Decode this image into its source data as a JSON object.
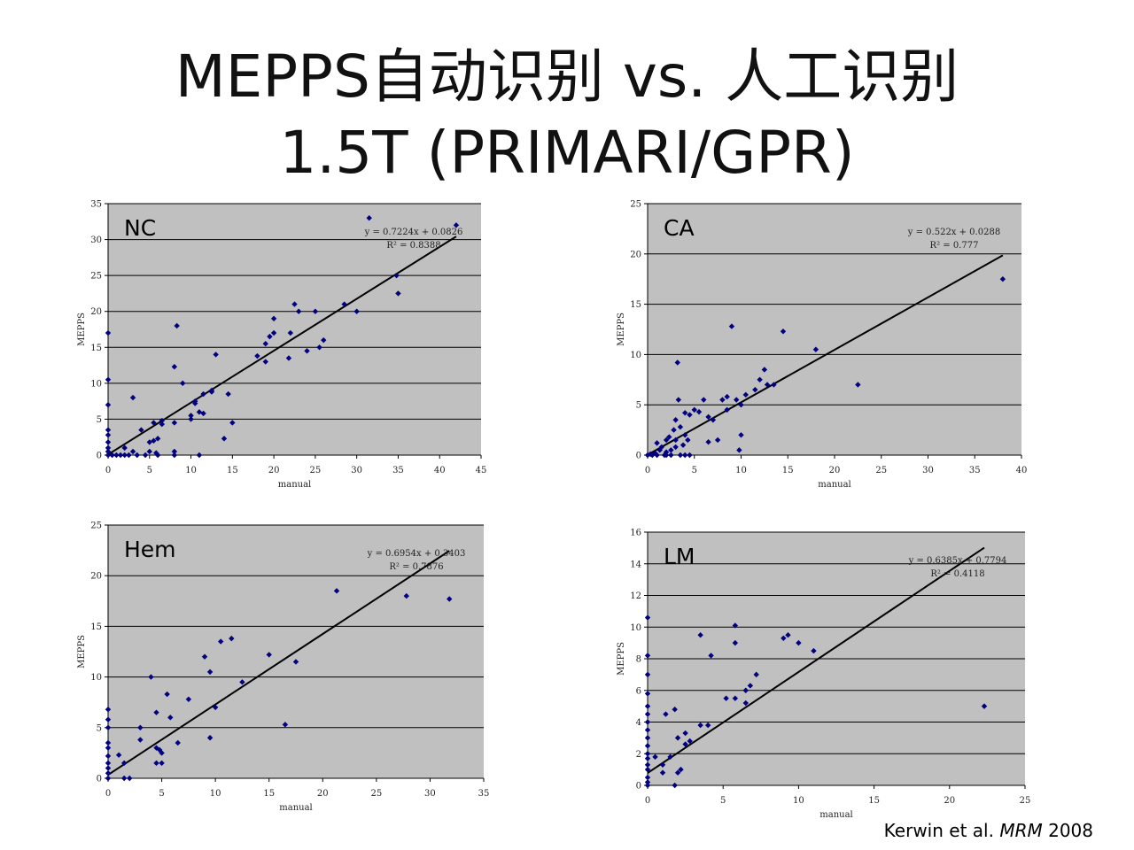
{
  "slide": {
    "title_line1": "MEPPS自动识别 vs. 人工识别",
    "title_line2": "1.5T  (PRIMARI/GPR)",
    "citation_authors": "Kerwin et al.",
    "citation_journal": "MRM",
    "citation_year": "2008"
  },
  "colors": {
    "plot_bg": "#C0C0C0",
    "point": "#000080",
    "line": "#000000",
    "grid": "#000000"
  },
  "chart_data": [
    {
      "type": "scatter",
      "panel_label": "NC",
      "xlabel": "manual",
      "ylabel": "MEPPS",
      "xlim": [
        0,
        45
      ],
      "ylim": [
        0,
        35
      ],
      "xticks": [
        0,
        5,
        10,
        15,
        20,
        25,
        30,
        35,
        40,
        45
      ],
      "yticks": [
        0,
        5,
        10,
        15,
        20,
        25,
        30,
        35
      ],
      "trendline": {
        "equation": "y = 0.7224x + 0.0826",
        "r2": "R² = 0.8388",
        "slope": 0.7224,
        "intercept": 0.0826,
        "x_range": [
          0,
          42
        ]
      },
      "points": [
        [
          0,
          17
        ],
        [
          0,
          10.5
        ],
        [
          0,
          7
        ],
        [
          0,
          3.5
        ],
        [
          0,
          2.8
        ],
        [
          0,
          1.8
        ],
        [
          0,
          1
        ],
        [
          0,
          0.5
        ],
        [
          0,
          0
        ],
        [
          0.5,
          0
        ],
        [
          1,
          0
        ],
        [
          1.5,
          0
        ],
        [
          2,
          1
        ],
        [
          2,
          0
        ],
        [
          2.5,
          0
        ],
        [
          3,
          0.5
        ],
        [
          3,
          8
        ],
        [
          3.5,
          0
        ],
        [
          4,
          3.5
        ],
        [
          4.5,
          0
        ],
        [
          5,
          1.8
        ],
        [
          5,
          0.5
        ],
        [
          5.5,
          4.5
        ],
        [
          5.5,
          2
        ],
        [
          5.8,
          0.3
        ],
        [
          6,
          2.3
        ],
        [
          6,
          0
        ],
        [
          6.5,
          4.8
        ],
        [
          6.5,
          4.3
        ],
        [
          8,
          12.3
        ],
        [
          8,
          4.5
        ],
        [
          8,
          0.5
        ],
        [
          8,
          0
        ],
        [
          8.3,
          18
        ],
        [
          9,
          10
        ],
        [
          10,
          5.5
        ],
        [
          10,
          5
        ],
        [
          10.5,
          7.5
        ],
        [
          10.5,
          7.2
        ],
        [
          11,
          6
        ],
        [
          11,
          0
        ],
        [
          11.5,
          5.8
        ],
        [
          11.5,
          8.5
        ],
        [
          12.5,
          8.8
        ],
        [
          12.5,
          9
        ],
        [
          13,
          14
        ],
        [
          14,
          2.3
        ],
        [
          14.5,
          8.5
        ],
        [
          15,
          4.5
        ],
        [
          18,
          13.8
        ],
        [
          19,
          15.5
        ],
        [
          19,
          13
        ],
        [
          19.5,
          16.5
        ],
        [
          20,
          17
        ],
        [
          20,
          19
        ],
        [
          21.8,
          13.5
        ],
        [
          22,
          17
        ],
        [
          22.5,
          21
        ],
        [
          23,
          20
        ],
        [
          24,
          14.5
        ],
        [
          25,
          20
        ],
        [
          25.5,
          15
        ],
        [
          26,
          16
        ],
        [
          28.5,
          21
        ],
        [
          30,
          20
        ],
        [
          31.5,
          33
        ],
        [
          34.8,
          25
        ],
        [
          35,
          22.5
        ],
        [
          42,
          32
        ]
      ]
    },
    {
      "type": "scatter",
      "panel_label": "CA",
      "xlabel": "manual",
      "ylabel": "MEPPS",
      "xlim": [
        0,
        40
      ],
      "ylim": [
        0,
        25
      ],
      "xticks": [
        0,
        5,
        10,
        15,
        20,
        25,
        30,
        35,
        40
      ],
      "yticks": [
        0,
        5,
        10,
        15,
        20,
        25
      ],
      "trendline": {
        "equation": "y = 0.522x + 0.0288",
        "r2": "R² = 0.777",
        "slope": 0.522,
        "intercept": 0.0288,
        "x_range": [
          0,
          38
        ]
      },
      "points": [
        [
          0,
          0
        ],
        [
          0.3,
          0.1
        ],
        [
          0.5,
          0
        ],
        [
          0.8,
          0.2
        ],
        [
          1,
          1.2
        ],
        [
          1,
          0
        ],
        [
          1.3,
          0.5
        ],
        [
          1.5,
          0.8
        ],
        [
          1.8,
          0
        ],
        [
          2,
          1.5
        ],
        [
          2,
          0.3
        ],
        [
          2,
          0
        ],
        [
          2.3,
          1.8
        ],
        [
          2.5,
          0.5
        ],
        [
          2.5,
          0
        ],
        [
          2.8,
          2.5
        ],
        [
          3,
          3.5
        ],
        [
          3,
          1.5
        ],
        [
          3,
          0.8
        ],
        [
          3.2,
          9.2
        ],
        [
          3.3,
          5.5
        ],
        [
          3.5,
          2.8
        ],
        [
          3.5,
          0
        ],
        [
          3.8,
          1
        ],
        [
          4,
          4.2
        ],
        [
          4,
          2
        ],
        [
          4,
          0
        ],
        [
          4.3,
          1.5
        ],
        [
          4.5,
          4
        ],
        [
          4.5,
          0
        ],
        [
          5,
          4.5
        ],
        [
          5.5,
          4.3
        ],
        [
          6,
          5.5
        ],
        [
          6.5,
          1.3
        ],
        [
          6.5,
          3.8
        ],
        [
          7,
          3.5
        ],
        [
          7.5,
          1.5
        ],
        [
          8,
          5.5
        ],
        [
          8.5,
          5.8
        ],
        [
          8.5,
          4.5
        ],
        [
          9,
          12.8
        ],
        [
          9.5,
          5.5
        ],
        [
          9.8,
          0.5
        ],
        [
          10,
          2
        ],
        [
          10,
          5
        ],
        [
          10.5,
          6
        ],
        [
          11.5,
          6.5
        ],
        [
          12,
          7.5
        ],
        [
          12.5,
          8.5
        ],
        [
          12.8,
          7
        ],
        [
          13.5,
          7
        ],
        [
          14.5,
          12.3
        ],
        [
          18,
          10.5
        ],
        [
          22.5,
          7
        ],
        [
          38,
          17.5
        ]
      ]
    },
    {
      "type": "scatter",
      "panel_label": "Hem",
      "xlabel": "manual",
      "ylabel": "MEPPS",
      "xlim": [
        0,
        35
      ],
      "ylim": [
        0,
        25
      ],
      "xticks": [
        0,
        5,
        10,
        15,
        20,
        25,
        30,
        35
      ],
      "yticks": [
        0,
        5,
        10,
        15,
        20,
        25
      ],
      "trendline": {
        "equation": "y = 0.6954x + 0.3403",
        "r2": "R² = 0.7876",
        "slope": 0.6954,
        "intercept": 0.3403,
        "x_range": [
          0,
          31.8
        ]
      },
      "points": [
        [
          0,
          6.8
        ],
        [
          0,
          5.8
        ],
        [
          0,
          5
        ],
        [
          0,
          3.5
        ],
        [
          0,
          3
        ],
        [
          0,
          2.2
        ],
        [
          0,
          1.5
        ],
        [
          0,
          1
        ],
        [
          0,
          0.5
        ],
        [
          0,
          0
        ],
        [
          1,
          2.3
        ],
        [
          1.5,
          1.5
        ],
        [
          1.5,
          0
        ],
        [
          2,
          0
        ],
        [
          3,
          3.8
        ],
        [
          3,
          5
        ],
        [
          4,
          10
        ],
        [
          4.5,
          6.5
        ],
        [
          4.5,
          3
        ],
        [
          4.5,
          1.5
        ],
        [
          4.8,
          2.8
        ],
        [
          5,
          2.5
        ],
        [
          5,
          1.5
        ],
        [
          5.5,
          8.3
        ],
        [
          5.8,
          6
        ],
        [
          6.5,
          3.5
        ],
        [
          7.5,
          7.8
        ],
        [
          9,
          12
        ],
        [
          9.5,
          10.5
        ],
        [
          9.5,
          4
        ],
        [
          10,
          7
        ],
        [
          10.5,
          13.5
        ],
        [
          11.5,
          13.8
        ],
        [
          12.5,
          9.5
        ],
        [
          15,
          12.2
        ],
        [
          16.5,
          5.3
        ],
        [
          17.5,
          11.5
        ],
        [
          21.3,
          18.5
        ],
        [
          27.8,
          18
        ],
        [
          31.8,
          17.7
        ]
      ]
    },
    {
      "type": "scatter",
      "panel_label": "LM",
      "xlabel": "manual",
      "ylabel": "MEPPS",
      "xlim": [
        0,
        25
      ],
      "ylim": [
        0,
        16
      ],
      "xticks": [
        0,
        5,
        10,
        15,
        20,
        25
      ],
      "yticks": [
        0,
        2,
        4,
        6,
        8,
        10,
        12,
        14,
        16
      ],
      "trendline": {
        "equation": "y = 0.6385x + 0.7794",
        "r2": "R² = 0.4118",
        "slope": 0.6385,
        "intercept": 0.7794,
        "x_range": [
          0,
          22.3
        ]
      },
      "points": [
        [
          0,
          10.6
        ],
        [
          0,
          8.2
        ],
        [
          0,
          7
        ],
        [
          0,
          5.8
        ],
        [
          0,
          5
        ],
        [
          0,
          4.5
        ],
        [
          0,
          4
        ],
        [
          0,
          3.5
        ],
        [
          0,
          3
        ],
        [
          0,
          2.5
        ],
        [
          0,
          2
        ],
        [
          0,
          1.7
        ],
        [
          0,
          1.3
        ],
        [
          0,
          1
        ],
        [
          0,
          0.5
        ],
        [
          0,
          0.2
        ],
        [
          0,
          0
        ],
        [
          0.5,
          1.8
        ],
        [
          1,
          1.3
        ],
        [
          1,
          0.8
        ],
        [
          1.2,
          4.5
        ],
        [
          1.5,
          1.8
        ],
        [
          1.8,
          4.8
        ],
        [
          1.8,
          0
        ],
        [
          2,
          3
        ],
        [
          2,
          0.8
        ],
        [
          2.2,
          1
        ],
        [
          2.5,
          3.3
        ],
        [
          2.5,
          2.6
        ],
        [
          2.8,
          2.8
        ],
        [
          3.5,
          3.8
        ],
        [
          3.5,
          9.5
        ],
        [
          4,
          3.8
        ],
        [
          4.2,
          8.2
        ],
        [
          5.2,
          5.5
        ],
        [
          5.8,
          5.5
        ],
        [
          5.8,
          9
        ],
        [
          5.8,
          10.1
        ],
        [
          6.5,
          5.2
        ],
        [
          6.5,
          6
        ],
        [
          6.8,
          6.3
        ],
        [
          7.2,
          7
        ],
        [
          9,
          9.3
        ],
        [
          9.3,
          9.5
        ],
        [
          10,
          9
        ],
        [
          11,
          8.5
        ],
        [
          22.3,
          5
        ]
      ]
    }
  ]
}
